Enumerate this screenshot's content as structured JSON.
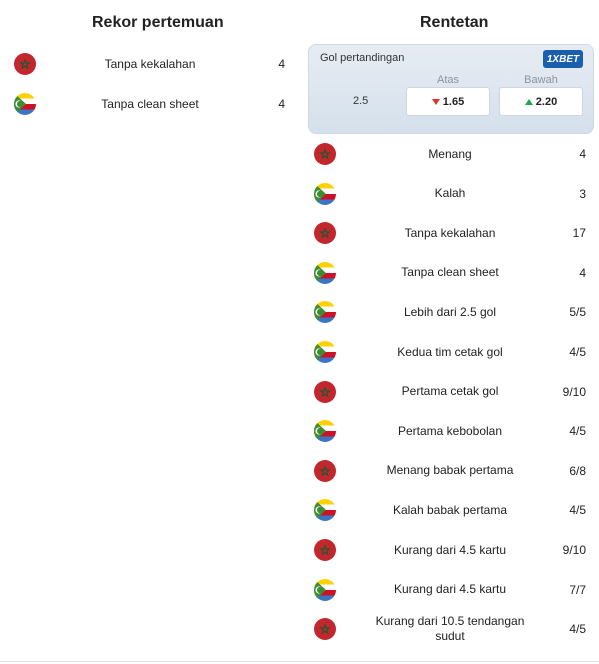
{
  "head_to_head": {
    "title": "Rekor pertemuan",
    "rows": [
      {
        "team": "morocco",
        "label": "Tanpa kekalahan",
        "value": "4"
      },
      {
        "team": "comoros",
        "label": "Tanpa clean sheet",
        "value": "4"
      }
    ]
  },
  "streaks": {
    "title": "Rentetan",
    "odds": {
      "title": "Gol pertandingan",
      "bookmaker": "1XBET",
      "line": "2.5",
      "over_label": "Atas",
      "under_label": "Bawah",
      "over_value": "1.65",
      "under_value": "2.20"
    },
    "rows": [
      {
        "team": "morocco",
        "label": "Menang",
        "value": "4"
      },
      {
        "team": "comoros",
        "label": "Kalah",
        "value": "3"
      },
      {
        "team": "morocco",
        "label": "Tanpa kekalahan",
        "value": "17"
      },
      {
        "team": "comoros",
        "label": "Tanpa clean sheet",
        "value": "4"
      },
      {
        "team": "comoros",
        "label": "Lebih dari 2.5 gol",
        "value": "5/5"
      },
      {
        "team": "comoros",
        "label": "Kedua tim cetak gol",
        "value": "4/5"
      },
      {
        "team": "morocco",
        "label": "Pertama cetak gol",
        "value": "9/10"
      },
      {
        "team": "comoros",
        "label": "Pertama kebobolan",
        "value": "4/5"
      },
      {
        "team": "morocco",
        "label": "Menang babak pertama",
        "value": "6/8"
      },
      {
        "team": "comoros",
        "label": "Kalah babak pertama",
        "value": "4/5"
      },
      {
        "team": "morocco",
        "label": "Kurang dari 4.5 kartu",
        "value": "9/10"
      },
      {
        "team": "comoros",
        "label": "Kurang dari 4.5 kartu",
        "value": "7/7"
      },
      {
        "team": "morocco",
        "label": "Kurang dari 10.5 tendangan sudut",
        "value": "4/5"
      }
    ]
  },
  "colors": {
    "morocco_red": "#c1272d",
    "morocco_star": "#006233",
    "comoros_yellow": "#ffd100",
    "comoros_white": "#ffffff",
    "comoros_red": "#ce1126",
    "comoros_blue": "#3a75c4",
    "comoros_green": "#3d8e33",
    "over_arrow": "#d9342b",
    "under_arrow": "#1fa650",
    "bookmaker_blue": "#1a5fae"
  }
}
